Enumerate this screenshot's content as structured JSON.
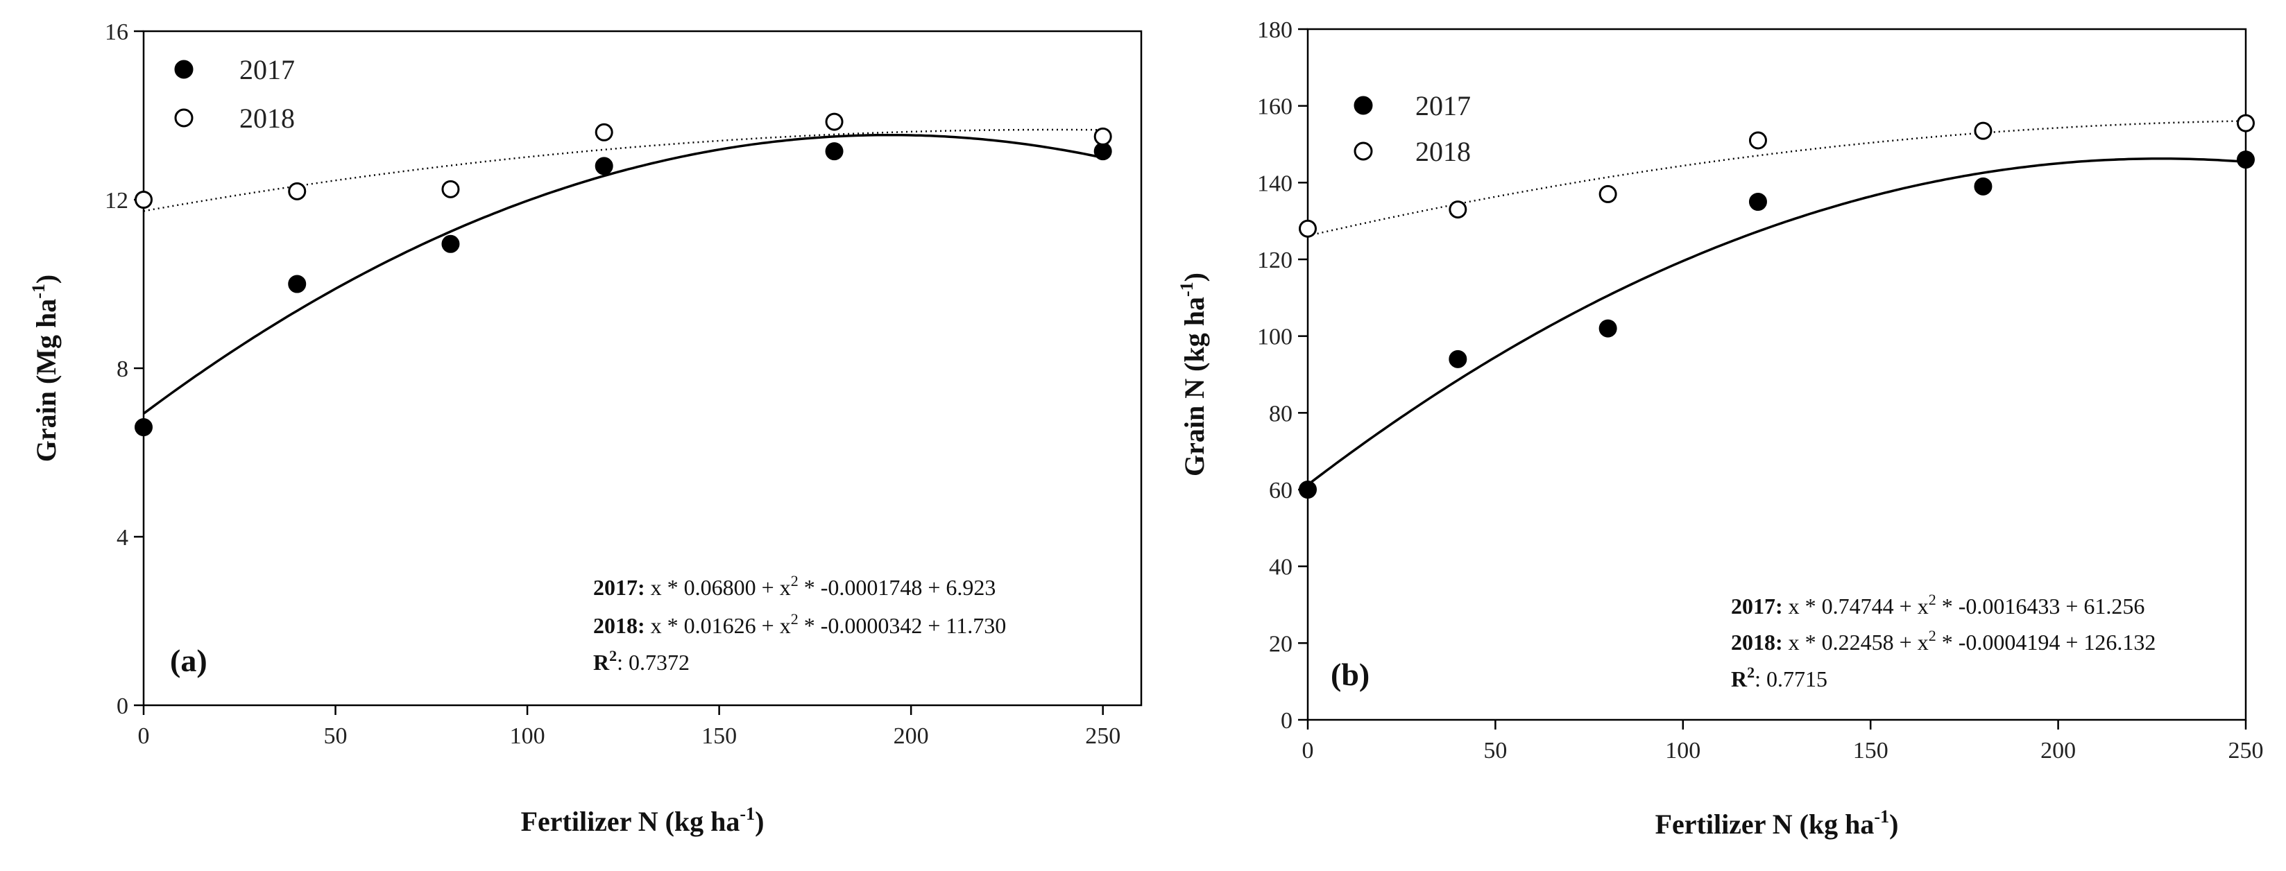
{
  "chart_data": [
    {
      "type": "scatter",
      "panel_label": "(a)",
      "ylabel": "Grain (Mg ha",
      "ylabel_sup": "-1",
      "ylabel_end": ")",
      "xlabel": "Fertilizer N (kg ha",
      "xlabel_sup": "-1",
      "xlabel_end": ")",
      "xlim": [
        0,
        260
      ],
      "ylim": [
        0,
        16
      ],
      "xticks": [
        0,
        50,
        100,
        150,
        200,
        250
      ],
      "yticks": [
        0,
        4,
        8,
        12,
        16
      ],
      "legend_position": "top-left",
      "series": [
        {
          "name": "2017",
          "marker": "filled",
          "x": [
            0,
            40,
            80,
            120,
            180,
            250
          ],
          "y": [
            6.6,
            10.0,
            10.95,
            12.8,
            13.15,
            13.15
          ],
          "fit": {
            "a": 0.068,
            "b": -0.0001748,
            "c": 6.923,
            "style": "solid"
          }
        },
        {
          "name": "2018",
          "marker": "open",
          "x": [
            0,
            40,
            80,
            120,
            180,
            250
          ],
          "y": [
            12.0,
            12.2,
            12.25,
            13.6,
            13.85,
            13.5
          ],
          "fit": {
            "a": 0.01626,
            "b": -3.42e-05,
            "c": 11.73,
            "style": "dotted"
          }
        }
      ],
      "annotations": [
        {
          "label": "2017:",
          "text_pre": " x * 0.06800 + x",
          "sup": "2",
          "text_post": " * -0.0001748 + 6.923"
        },
        {
          "label": "2018:",
          "text_pre": " x * 0.01626 + x",
          "sup": "2",
          "text_post": " * -0.0000342 + 11.730"
        },
        {
          "label": "R",
          "sup": "2",
          "text_post": ": 0.7372"
        }
      ]
    },
    {
      "type": "scatter",
      "panel_label": "(b)",
      "ylabel": "Grain N (kg ha",
      "ylabel_sup": "-1",
      "ylabel_end": ")",
      "xlabel": "Fertilizer N (kg ha",
      "xlabel_sup": "-1",
      "xlabel_end": ")",
      "xlim": [
        0,
        250
      ],
      "ylim": [
        0,
        180
      ],
      "xticks": [
        0,
        50,
        100,
        150,
        200,
        250
      ],
      "yticks": [
        0,
        20,
        40,
        60,
        80,
        100,
        120,
        140,
        160,
        180
      ],
      "legend_position": "top-left",
      "series": [
        {
          "name": "2017",
          "marker": "filled",
          "x": [
            0,
            40,
            80,
            120,
            180,
            250
          ],
          "y": [
            60,
            94,
            102,
            135,
            139,
            146
          ],
          "fit": {
            "a": 0.74744,
            "b": -0.0016433,
            "c": 61.256,
            "style": "solid"
          }
        },
        {
          "name": "2018",
          "marker": "open",
          "x": [
            0,
            40,
            80,
            120,
            180,
            250
          ],
          "y": [
            128,
            133,
            137,
            151,
            153.5,
            155.5
          ],
          "fit": {
            "a": 0.22458,
            "b": -0.0004194,
            "c": 126.132,
            "style": "dotted"
          }
        }
      ],
      "annotations": [
        {
          "label": "2017:",
          "text_pre": " x * 0.74744 + x",
          "sup": "2",
          "text_post": " * -0.0016433 + 61.256"
        },
        {
          "label": "2018:",
          "text_pre": " x * 0.22458 + x",
          "sup": "2",
          "text_post": " * -0.0004194 + 126.132"
        },
        {
          "label": "R",
          "sup": "2",
          "text_post": ": 0.7715"
        }
      ]
    }
  ]
}
